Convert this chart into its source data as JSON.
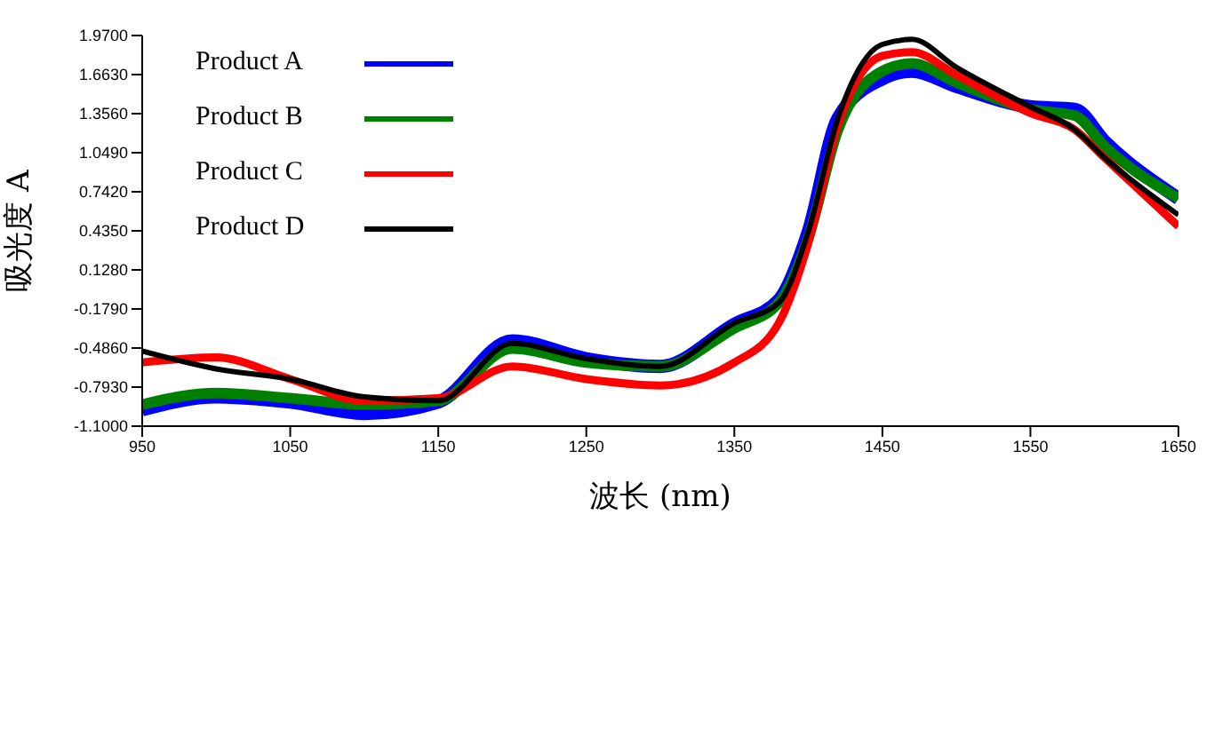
{
  "chart_data": {
    "type": "line",
    "xlabel": "波长 (nm)",
    "ylabel": "吸光度 A",
    "x": [
      950,
      1000,
      1050,
      1100,
      1150,
      1200,
      1250,
      1300,
      1350,
      1380,
      1400,
      1420,
      1450,
      1470,
      1500,
      1550,
      1580,
      1600,
      1650
    ],
    "series": [
      {
        "name": "Product A",
        "color": "#0000ff",
        "values": [
          -0.97,
          -0.87,
          -0.91,
          -1.0,
          -0.91,
          -0.43,
          -0.57,
          -0.63,
          -0.3,
          -0.11,
          0.43,
          1.32,
          1.63,
          1.69,
          1.57,
          1.41,
          1.39,
          1.14,
          0.69
        ]
      },
      {
        "name": "Product B",
        "color": "#008000",
        "values": [
          -0.93,
          -0.84,
          -0.88,
          -0.93,
          -0.9,
          -0.49,
          -0.6,
          -0.63,
          -0.33,
          -0.13,
          0.38,
          1.23,
          1.69,
          1.75,
          1.6,
          1.39,
          1.34,
          1.1,
          0.69
        ]
      },
      {
        "name": "Product C",
        "color": "#ff0000",
        "values": [
          -0.6,
          -0.56,
          -0.73,
          -0.9,
          -0.88,
          -0.63,
          -0.73,
          -0.78,
          -0.6,
          -0.29,
          0.34,
          1.27,
          1.81,
          1.84,
          1.66,
          1.36,
          1.23,
          1.01,
          0.47
        ]
      },
      {
        "name": "Product D",
        "color": "#000000",
        "values": [
          -0.51,
          -0.65,
          -0.73,
          -0.87,
          -0.9,
          -0.45,
          -0.57,
          -0.63,
          -0.29,
          -0.13,
          0.43,
          1.32,
          1.9,
          1.94,
          1.72,
          1.41,
          1.23,
          1.01,
          0.56
        ]
      }
    ],
    "xlim": [
      950,
      1650
    ],
    "xticks": [
      950,
      1050,
      1150,
      1250,
      1350,
      1450,
      1550,
      1650
    ],
    "ylim": [
      -1.1,
      1.97
    ],
    "yticks": [
      {
        "value": -1.1,
        "label": "-1.1000"
      },
      {
        "value": -0.793,
        "label": "-0.7930"
      },
      {
        "value": -0.486,
        "label": "-0.4860"
      },
      {
        "value": -0.179,
        "label": "-0.1790"
      },
      {
        "value": 0.128,
        "label": "0.1280"
      },
      {
        "value": 0.435,
        "label": "0.4350"
      },
      {
        "value": 0.742,
        "label": "0.7420"
      },
      {
        "value": 1.049,
        "label": "1.0490"
      },
      {
        "value": 1.356,
        "label": "1.3560"
      },
      {
        "value": 1.663,
        "label": "1.6630"
      },
      {
        "value": 1.97,
        "label": "1.9700"
      }
    ],
    "grid": false,
    "legend": "top left",
    "marker": "none",
    "line_style": "solid"
  }
}
